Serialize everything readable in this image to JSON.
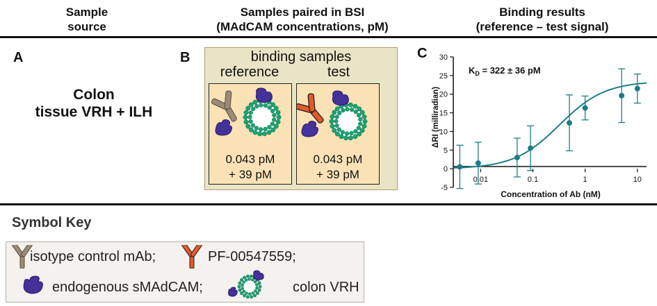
{
  "headers": {
    "col1": [
      "Sample",
      "source"
    ],
    "col2": [
      "Samples paired in BSI",
      "(MAdCAM concentrations, pM)"
    ],
    "col3": [
      "Binding results",
      "(reference – test signal)"
    ]
  },
  "panel_a": {
    "letter": "A",
    "line1": "Colon",
    "line2": "tissue VRH + ILH"
  },
  "panel_b": {
    "letter": "B",
    "title": "binding samples",
    "reference_label": "reference",
    "test_label": "test",
    "reference_conc": [
      "0.043 pM",
      "+ 39 pM"
    ],
    "test_conc": [
      "0.043 pM",
      "+ 39 pM"
    ]
  },
  "panel_c": {
    "letter": "C",
    "kd_prefix": "K",
    "kd_sub": "D",
    "kd_value": " = 322 ± 36 pM"
  },
  "chart_data": {
    "type": "scatter",
    "xlabel": "Concentration of Ab (nM)",
    "ylabel": "ΔRI (milliradian)",
    "x_scale": "log",
    "xlim": [
      0.003,
      15
    ],
    "ylim": [
      -5,
      30
    ],
    "x_ticks": [
      0.01,
      0.1,
      1,
      10
    ],
    "x_tick_labels": [
      "0.01",
      "0.1",
      "1",
      "10"
    ],
    "y_ticks": [
      -5,
      0,
      5,
      10,
      15,
      20,
      25,
      30
    ],
    "y_tick_labels": [
      "-5",
      "0",
      "5",
      "10",
      "15",
      "20",
      "25",
      "30"
    ],
    "color": "#1d7d86",
    "points": [
      {
        "x": 0.004,
        "y": 0.5,
        "err": 5.8
      },
      {
        "x": 0.009,
        "y": 1.5,
        "err": 5.6
      },
      {
        "x": 0.05,
        "y": 3.0,
        "err": 5.2
      },
      {
        "x": 0.09,
        "y": 5.5,
        "err": 6.0
      },
      {
        "x": 0.5,
        "y": 12.3,
        "err": 7.5
      },
      {
        "x": 1.0,
        "y": 16.3,
        "err": 3.2
      },
      {
        "x": 5.0,
        "y": 19.6,
        "err": 7.2
      },
      {
        "x": 10.0,
        "y": 21.5,
        "err": 3.9
      }
    ],
    "fit": {
      "model": "one-site binding",
      "bmax": 23.5,
      "kd_nM": 0.322
    }
  },
  "symbol_key": {
    "title": "Symbol Key",
    "isotype": "isotype control mAb;",
    "pf": "PF-00547559;",
    "endogenous": "endogenous sMAdCAM;",
    "vrh": "colon VRH"
  },
  "colors": {
    "isotype": "#9b8a78",
    "pf_antibody": "#e2592a",
    "smadcam": "#45319a",
    "vesicle": "#17a673",
    "panel_b_bg": "#e9e4c5",
    "subpanel_bg": "#fbe2b6"
  }
}
